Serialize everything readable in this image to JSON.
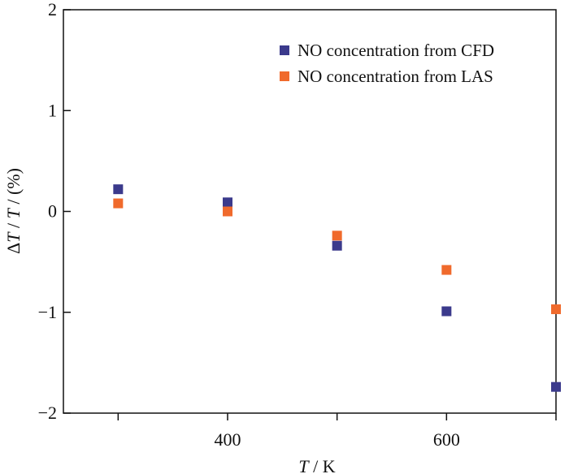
{
  "chart_data": {
    "type": "scatter",
    "title": "",
    "xlabel_var": "T",
    "xlabel_unit": " / K",
    "ylabel_delta": "Δ",
    "ylabel_var": "T",
    "ylabel_mid": " / ",
    "ylabel_var2": "T",
    "ylabel_unit": " / (%)",
    "xlim": [
      250,
      700
    ],
    "ylim": [
      -2,
      2
    ],
    "xticks": [
      300,
      400,
      500,
      600,
      700
    ],
    "xtick_labels": [
      "",
      "400",
      "",
      "600",
      ""
    ],
    "yticks": [
      -2,
      -1,
      0,
      1,
      2
    ],
    "ytick_labels": [
      "−2",
      "−1",
      "0",
      "1",
      "2"
    ],
    "legend_position": "top-right",
    "series": [
      {
        "name": "NO concentration from CFD",
        "color": "#3b3a8c",
        "x": [
          300,
          400,
          500,
          600,
          700
        ],
        "y": [
          0.22,
          0.09,
          -0.34,
          -0.99,
          -1.74
        ]
      },
      {
        "name": "NO concentration from LAS",
        "color": "#f06a2c",
        "x": [
          300,
          400,
          500,
          600,
          700
        ],
        "y": [
          0.08,
          0.0,
          -0.24,
          -0.58,
          -0.97
        ]
      }
    ]
  }
}
